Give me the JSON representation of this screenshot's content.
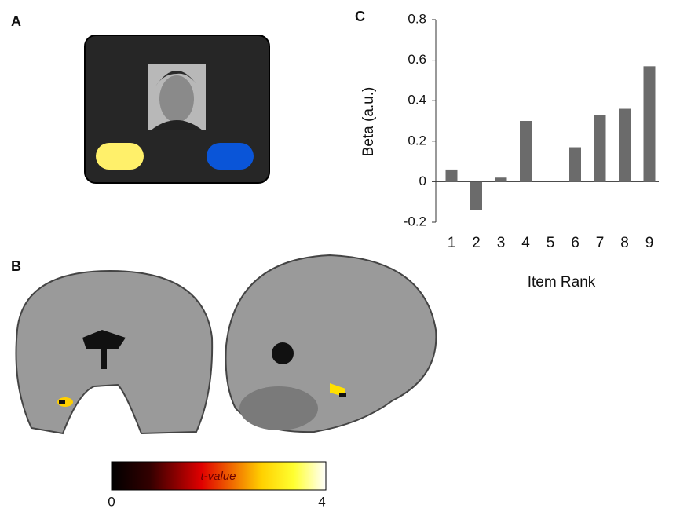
{
  "panel_labels": [
    "A",
    "B",
    "C"
  ],
  "colorbar": {
    "label": "t-value",
    "ticks": [
      0,
      4
    ]
  },
  "chart_data": {
    "type": "bar",
    "x_label": "Item Rank",
    "y_label": "Beta (a.u.)",
    "categories": [
      "1",
      "2",
      "3",
      "4",
      "5",
      "6",
      "7",
      "8",
      "9"
    ],
    "values": [
      0.06,
      -0.14,
      0.02,
      0.3,
      null,
      0.17,
      0.33,
      0.36,
      0.57
    ],
    "color": "#6b6b6b",
    "ylim": [
      -0.2,
      0.8
    ],
    "yticks": [
      -0.2,
      0,
      0.2,
      0.4,
      0.6,
      0.8
    ],
    "grid": false
  }
}
